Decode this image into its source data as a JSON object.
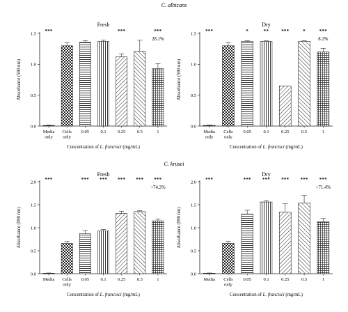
{
  "sections": [
    {
      "title": "C. albicans"
    },
    {
      "title": "C. krusei"
    }
  ],
  "chart_data": [
    {
      "type": "bar",
      "id": "ca-fresh",
      "title": "Fresh",
      "ylabel": "Absorbance (590 nm)",
      "xlabel_parts": [
        "Concentration of ",
        "L. francisci",
        " (mg/mL)"
      ],
      "categories": [
        "Media only",
        "Cells only",
        "0.05",
        "0.1",
        "0.25",
        "0.5",
        "1"
      ],
      "values": [
        0.01,
        1.3,
        1.36,
        1.37,
        1.12,
        1.21,
        0.93
      ],
      "errors": [
        0.005,
        0.05,
        0.02,
        0.02,
        0.05,
        0.18,
        0.08
      ],
      "significance": [
        "***",
        "",
        "",
        "",
        "***",
        "",
        "***"
      ],
      "annotation": "28.1%",
      "annotation_index": 6,
      "ylim": [
        0,
        1.5
      ],
      "yticks": [
        "0.0",
        "0.5",
        "1.0",
        "1.5"
      ]
    },
    {
      "type": "bar",
      "id": "ca-dry",
      "title": "Dry",
      "ylabel": "Absorbance (590 nm)",
      "xlabel_parts": [
        "Concentration of ",
        "L. francisci",
        " (mg/mL)"
      ],
      "categories": [
        "Media only",
        "Cells only",
        "0.05",
        "0.1",
        "0.25",
        "0.5",
        "1"
      ],
      "values": [
        0.01,
        1.3,
        1.37,
        1.37,
        0.65,
        1.37,
        1.2
      ],
      "errors": [
        0.005,
        0.05,
        0.01,
        0.01,
        0.0,
        0.01,
        0.06
      ],
      "significance": [
        "***",
        "",
        "*",
        "**",
        "***",
        "*",
        "***"
      ],
      "annotation": "8.2%",
      "annotation_index": 6,
      "ylim": [
        0,
        1.5
      ],
      "yticks": [
        "0.0",
        "0.5",
        "1.0",
        "1.5"
      ]
    },
    {
      "type": "bar",
      "id": "ck-fresh",
      "title": "Fresh",
      "ylabel": "Absorbance (590 nm)",
      "xlabel_parts": [
        "Concentration of ",
        "L. francisci",
        " (mg/mL)"
      ],
      "categories": [
        "Media",
        "Cells only",
        "0.05",
        "0.1",
        "0.25",
        "0.5",
        "1"
      ],
      "values": [
        0.01,
        0.66,
        0.87,
        0.93,
        1.31,
        1.35,
        1.15
      ],
      "errors": [
        0.005,
        0.04,
        0.07,
        0.03,
        0.05,
        0.02,
        0.04
      ],
      "significance": [
        "***",
        "",
        "***",
        "***",
        "***",
        "***",
        "***"
      ],
      "annotation": "+74.2%",
      "annotation_index": 6,
      "ylim": [
        0,
        2.0
      ],
      "yticks": [
        "0.0",
        "0.5",
        "1.0",
        "1.5",
        "2.0"
      ]
    },
    {
      "type": "bar",
      "id": "ck-dry",
      "title": "Dry",
      "ylabel": "Absorbance (590 nm)",
      "xlabel_parts": [
        "Concentration of ",
        "L. francisci",
        " (mg/mL)"
      ],
      "categories": [
        "Media",
        "Cells only",
        "0.05",
        "0.1",
        "0.25",
        "0.5",
        "1"
      ],
      "values": [
        0.01,
        0.66,
        1.3,
        1.56,
        1.34,
        1.54,
        1.13
      ],
      "errors": [
        0.005,
        0.04,
        0.08,
        0.03,
        0.18,
        0.16,
        0.07
      ],
      "significance": [
        "***",
        "",
        "***",
        "***",
        "***",
        "***",
        "***"
      ],
      "annotation": "+71.4%",
      "annotation_index": 6,
      "ylim": [
        0,
        2.0
      ],
      "yticks": [
        "0.0",
        "0.5",
        "1.0",
        "1.5",
        "2.0"
      ]
    }
  ],
  "bar_patterns": [
    "solid",
    "checker",
    "horizontal",
    "vertical",
    "diagonal",
    "backdiagonal",
    "grid"
  ],
  "colors": {
    "ink": "#222222",
    "fill": "#ffffff"
  }
}
